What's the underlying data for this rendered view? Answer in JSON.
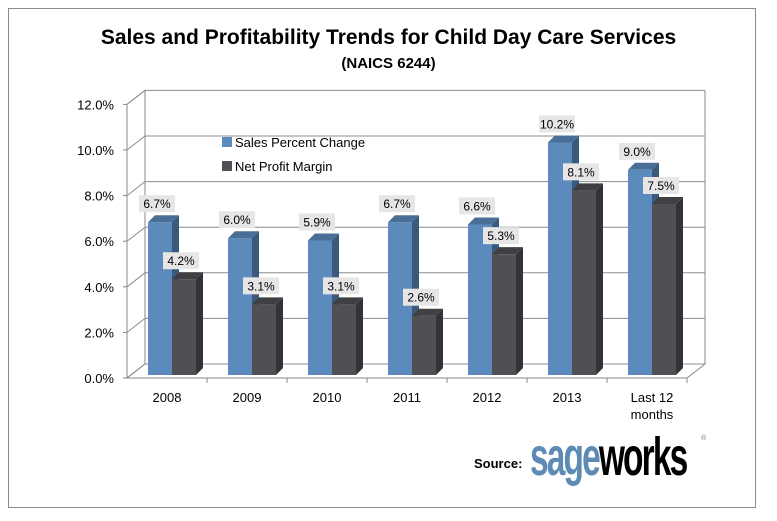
{
  "title": "Sales and Profitability Trends for Child Day Care Services",
  "subtitle": "(NAICS 6244)",
  "source_label": "Source:",
  "logo": {
    "part1": "sage",
    "part2": "works",
    "mark": "®"
  },
  "chart_data": {
    "type": "bar",
    "title": "Sales and Profitability Trends for Child Day Care Services",
    "subtitle": "(NAICS 6244)",
    "categories": [
      "2008",
      "2009",
      "2010",
      "2011",
      "2012",
      "2013",
      "Last 12 months"
    ],
    "series": [
      {
        "name": "Sales Percent Change",
        "values": [
          6.7,
          6.0,
          5.9,
          6.7,
          6.6,
          10.2,
          9.0
        ],
        "labels": [
          "6.7%",
          "6.0%",
          "5.9%",
          "6.7%",
          "6.6%",
          "10.2%",
          "9.0%"
        ],
        "color": "#5b8bbd"
      },
      {
        "name": "Net Profit Margin",
        "values": [
          4.2,
          3.1,
          3.1,
          2.6,
          5.3,
          8.1,
          7.5
        ],
        "labels": [
          "4.2%",
          "3.1%",
          "3.1%",
          "2.6%",
          "5.3%",
          "8.1%",
          "7.5%"
        ],
        "color": "#4f4f55"
      }
    ],
    "yticks": [
      "0.0%",
      "2.0%",
      "4.0%",
      "6.0%",
      "8.0%",
      "10.0%",
      "12.0%"
    ],
    "ylim": [
      0,
      12
    ],
    "grid": true,
    "legend": "top-left inside",
    "style": "3d-column"
  }
}
